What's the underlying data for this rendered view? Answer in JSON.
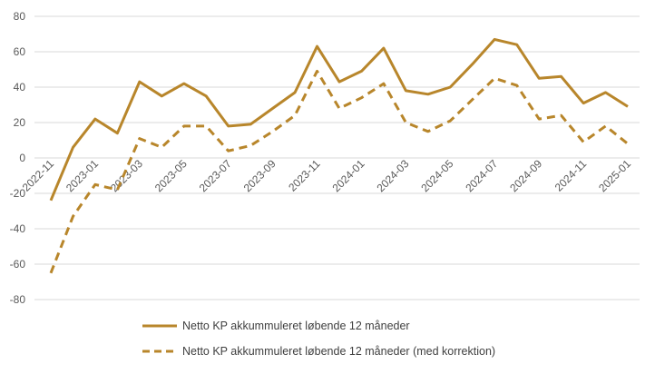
{
  "chart_data": {
    "type": "line",
    "title": "",
    "xlabel": "",
    "ylabel": "",
    "ylim": [
      -80,
      80
    ],
    "yticks": [
      80,
      60,
      40,
      20,
      0,
      -20,
      -40,
      -60,
      -80
    ],
    "grid": "horizontal",
    "legend_position": "bottom",
    "x_labels": [
      "2022-11",
      "2023-01",
      "2023-03",
      "2023-05",
      "2023-07",
      "2023-09",
      "2023-11",
      "2024-01",
      "2024-03",
      "2024-05",
      "2024-07",
      "2024-09",
      "2024-11",
      "2025-01"
    ],
    "x": [
      "2022-11",
      "2022-12",
      "2023-01",
      "2023-02",
      "2023-03",
      "2023-04",
      "2023-05",
      "2023-06",
      "2023-07",
      "2023-08",
      "2023-09",
      "2023-10",
      "2023-11",
      "2023-12",
      "2024-01",
      "2024-02",
      "2024-03",
      "2024-04",
      "2024-05",
      "2024-06",
      "2024-07",
      "2024-08",
      "2024-09",
      "2024-10",
      "2024-11",
      "2024-12",
      "2025-01"
    ],
    "series": [
      {
        "name": "Netto KP akkummuleret løbende 12 måneder",
        "style": "solid",
        "color": "#B8862B",
        "values": [
          -24,
          6,
          22,
          14,
          43,
          35,
          42,
          35,
          18,
          19,
          28,
          37,
          63,
          43,
          49,
          62,
          38,
          36,
          40,
          53,
          67,
          64,
          45,
          46,
          31,
          37,
          29
        ]
      },
      {
        "name": "Netto KP akkummuleret løbende 12 måneder (med korrektion)",
        "style": "dashed",
        "color": "#B8862B",
        "values": [
          -65,
          -33,
          -15,
          -18,
          11,
          6,
          18,
          18,
          4,
          7,
          15,
          24,
          49,
          28,
          34,
          42,
          20,
          15,
          21,
          33,
          45,
          41,
          22,
          24,
          9,
          18,
          8
        ]
      }
    ]
  }
}
